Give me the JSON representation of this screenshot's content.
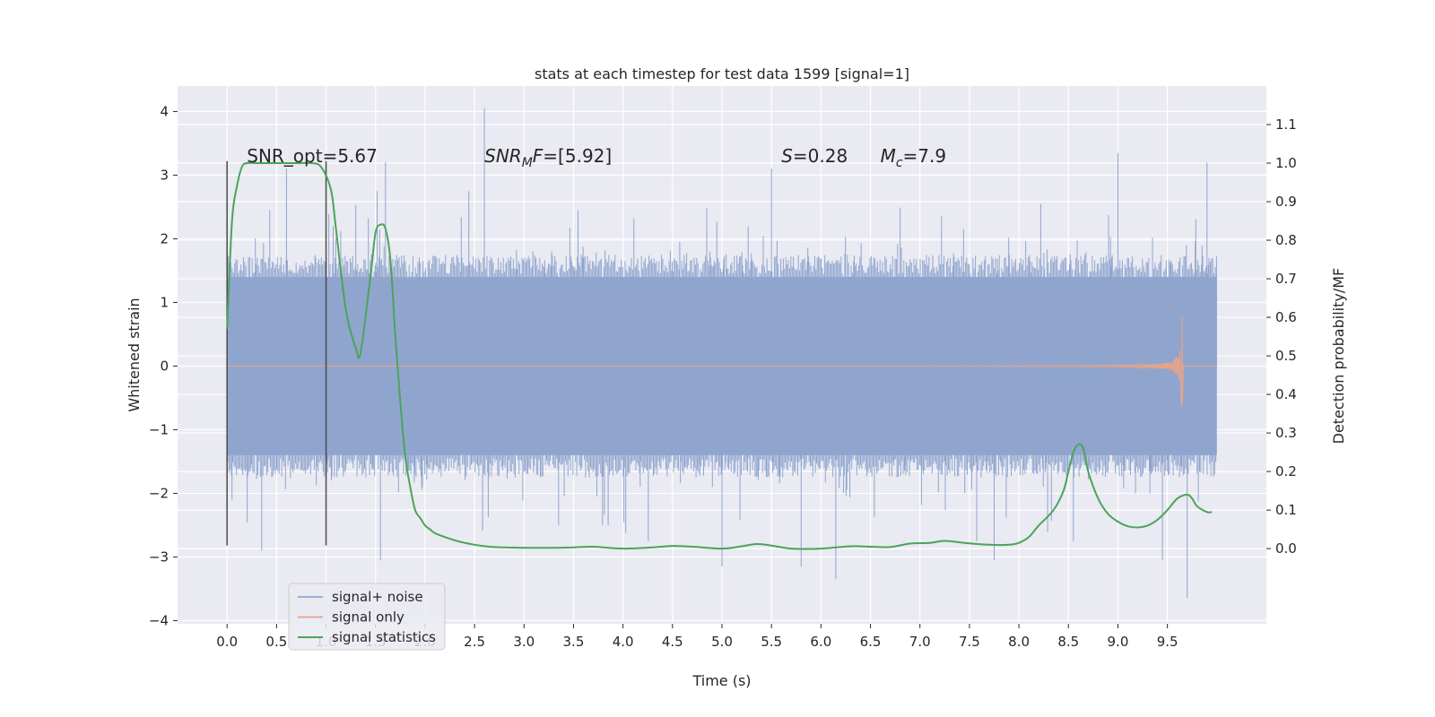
{
  "chart_data": {
    "type": "line",
    "title": "stats at each timestep for test data 1599 [signal=1]",
    "xlabel": "Time (s)",
    "ylabel": "Whitened strain",
    "y2label": "Detection probability/MF",
    "xlim": [
      -0.5,
      10.5
    ],
    "ylim": [
      -4.05,
      4.4
    ],
    "y2lim": [
      -0.195,
      1.2
    ],
    "x_ticks": [
      0.0,
      0.5,
      1.0,
      1.5,
      2.0,
      2.5,
      3.0,
      3.5,
      4.0,
      4.5,
      5.0,
      5.5,
      6.0,
      6.5,
      7.0,
      7.5,
      8.0,
      8.5,
      9.0,
      9.5
    ],
    "x_tick_labels": [
      "0.0",
      "0.5",
      "1.0",
      "1.5",
      "2.0",
      "2.5",
      "3.0",
      "3.5",
      "4.0",
      "4.5",
      "5.0",
      "5.5",
      "6.0",
      "6.5",
      "7.0",
      "7.5",
      "8.0",
      "8.5",
      "9.0",
      "9.5"
    ],
    "y_ticks": [
      4,
      3,
      2,
      1,
      0,
      -1,
      -2,
      -3,
      -4
    ],
    "y_tick_labels": [
      "4",
      "3",
      "2",
      "1",
      "0",
      "−1",
      "−2",
      "−3",
      "−4"
    ],
    "y2_ticks": [
      1.1,
      1.0,
      0.9,
      0.8,
      0.7,
      0.6,
      0.5,
      0.4,
      0.3,
      0.2,
      0.1,
      0.0
    ],
    "y2_tick_labels": [
      "1.1",
      "1.0",
      "0.9",
      "0.8",
      "0.7",
      "0.6",
      "0.5",
      "0.4",
      "0.3",
      "0.2",
      "0.1",
      "0.0"
    ],
    "grid": true,
    "legend_position": "bottom-left",
    "colors": {
      "noise": "#8fa5ce",
      "signal": "#e1a48b",
      "stat": "#4ca35a",
      "vline": "#4a4a4a",
      "plot_bg": "#eaeaf2",
      "grid": "#ffffff"
    },
    "annotations": [
      {
        "id": "snr-opt",
        "text": "SNR_opt=5.67",
        "x": 0.2,
        "y": 3.2
      },
      {
        "id": "snr-mf",
        "base": "SNR",
        "sub": "M",
        "rest": "F=[5.92]",
        "x": 2.6,
        "y": 3.2
      },
      {
        "id": "spin",
        "base": "S",
        "rest": "=0.28",
        "x": 5.6,
        "y": 3.2
      },
      {
        "id": "chirp-mass",
        "base": "M",
        "sub": "c",
        "rest": "=7.9",
        "x": 6.6,
        "y": 3.2
      }
    ],
    "vlines": [
      {
        "x": 0.0,
        "ymin": -2.82,
        "ymax": 3.22
      },
      {
        "x": 1.0,
        "ymin": -2.82,
        "ymax": 3.22
      }
    ],
    "series": [
      {
        "name": "signal+ noise",
        "kind": "noise-band",
        "x_range": [
          0.0,
          10.0
        ],
        "core": [
          -1.4,
          1.4
        ],
        "typical_spike_range": [
          2.3,
          2.7
        ],
        "extremes": [
          {
            "x": 2.6,
            "y": 4.05
          },
          {
            "x": 1.6,
            "y": 3.2
          },
          {
            "x": 9.0,
            "y": 3.35
          },
          {
            "x": 9.9,
            "y": 3.2
          },
          {
            "x": 5.5,
            "y": 3.1
          },
          {
            "x": 0.6,
            "y": 3.1
          },
          {
            "x": 9.7,
            "y": -3.65
          },
          {
            "x": 6.15,
            "y": -3.35
          },
          {
            "x": 5.0,
            "y": -3.15
          },
          {
            "x": 1.55,
            "y": -3.05
          },
          {
            "x": 9.45,
            "y": -3.05
          },
          {
            "x": 7.75,
            "y": -3.05
          },
          {
            "x": 0.35,
            "y": -2.9
          },
          {
            "x": 5.8,
            "y": -3.15
          },
          {
            "x": 0.05,
            "y": -2.1
          }
        ]
      },
      {
        "name": "signal only",
        "kind": "chirp",
        "x_range": [
          0.0,
          10.0
        ],
        "merger_time": 9.65,
        "peak_amplitude": 0.78,
        "trough_amplitude": -0.62
      },
      {
        "name": "signal statistics",
        "kind": "line",
        "axis": "right",
        "x": [
          0.0,
          0.05,
          0.1,
          0.15,
          0.2,
          0.3,
          0.5,
          0.7,
          0.85,
          0.95,
          1.05,
          1.1,
          1.2,
          1.3,
          1.35,
          1.45,
          1.5,
          1.55,
          1.6,
          1.65,
          1.7,
          1.75,
          1.8,
          1.85,
          1.9,
          1.95,
          2.0,
          2.05,
          2.1,
          2.2,
          2.35,
          2.5,
          2.65,
          2.8,
          3.0,
          3.3,
          3.5,
          3.7,
          4.0,
          4.3,
          4.5,
          4.7,
          5.0,
          5.2,
          5.35,
          5.5,
          5.7,
          6.0,
          6.3,
          6.5,
          6.7,
          6.9,
          7.1,
          7.25,
          7.45,
          7.7,
          7.9,
          8.0,
          8.1,
          8.2,
          8.35,
          8.45,
          8.5,
          8.55,
          8.6,
          8.65,
          8.7,
          8.8,
          8.9,
          9.0,
          9.1,
          9.2,
          9.3,
          9.4,
          9.5,
          9.6,
          9.7,
          9.75,
          9.8,
          9.9,
          9.95
        ],
        "values": [
          0.57,
          0.85,
          0.94,
          0.99,
          1.0,
          1.0,
          1.0,
          1.0,
          1.0,
          0.99,
          0.93,
          0.83,
          0.62,
          0.52,
          0.51,
          0.71,
          0.82,
          0.84,
          0.83,
          0.75,
          0.55,
          0.38,
          0.24,
          0.16,
          0.1,
          0.08,
          0.06,
          0.05,
          0.04,
          0.03,
          0.018,
          0.01,
          0.005,
          0.003,
          0.002,
          0.002,
          0.003,
          0.005,
          0.0,
          0.003,
          0.007,
          0.005,
          0.0,
          0.006,
          0.012,
          0.008,
          0.0,
          0.0,
          0.006,
          0.005,
          0.004,
          0.013,
          0.015,
          0.02,
          0.015,
          0.01,
          0.01,
          0.015,
          0.03,
          0.06,
          0.1,
          0.15,
          0.2,
          0.25,
          0.27,
          0.26,
          0.2,
          0.13,
          0.09,
          0.07,
          0.058,
          0.055,
          0.06,
          0.075,
          0.1,
          0.13,
          0.14,
          0.13,
          0.11,
          0.095,
          0.095
        ]
      }
    ]
  }
}
